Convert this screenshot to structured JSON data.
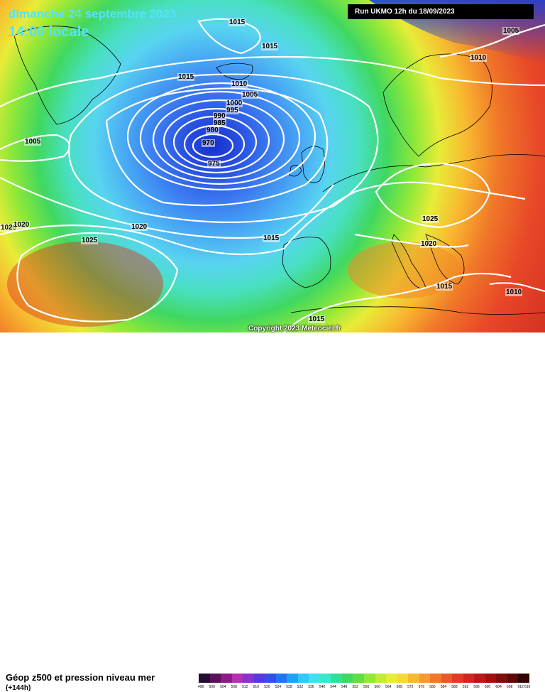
{
  "header": {
    "date": "dimanche 24 septembre 2023",
    "time": "14:00 locale",
    "run": "Run UKMO 12h du 18/09/2023"
  },
  "map": {
    "low_center_value": "970",
    "isobar_labels": [
      "1015",
      "1015",
      "1005",
      "1010",
      "1010",
      "1015",
      "1005",
      "1000",
      "995",
      "990",
      "985",
      "980",
      "970",
      "975",
      "1005",
      "1020",
      "1020",
      "1020",
      "1025",
      "1015",
      "1025",
      "1020",
      "1015",
      "1010",
      "1015"
    ],
    "copyright": "Copyright 2023 Meteociel.fr",
    "colors": {
      "deep_low": "#1a3cd8",
      "low": "#3b7cf0",
      "mid": "#58d8f0",
      "green": "#4cd848",
      "yellow": "#f0e040",
      "orange": "#f0a030",
      "red": "#e84428",
      "dark_red": "#c8201c",
      "isobar": "#ffffff",
      "coast": "#000000"
    }
  },
  "footer": {
    "field": "Géop z500 et pression niveau mer",
    "lead": "(+144h)"
  },
  "legend": {
    "values": [
      "496",
      "500",
      "504",
      "508",
      "512",
      "516",
      "520",
      "524",
      "528",
      "532",
      "536",
      "540",
      "544",
      "548",
      "552",
      "556",
      "560",
      "564",
      "568",
      "572",
      "576",
      "580",
      "584",
      "588",
      "592",
      "596",
      "600",
      "604",
      "608",
      "612",
      "616"
    ],
    "colors": [
      "#240c30",
      "#5a1258",
      "#8e1a8a",
      "#b430b4",
      "#8c30d0",
      "#5a38e0",
      "#3450e8",
      "#2078f0",
      "#20a0f8",
      "#30c8f8",
      "#40e0f0",
      "#38e8c8",
      "#30e098",
      "#40d860",
      "#60e040",
      "#90e838",
      "#c0ec38",
      "#e8ec38",
      "#f8d838",
      "#f8b830",
      "#f89830",
      "#f07828",
      "#e85828",
      "#e03c24",
      "#d02820",
      "#b81818",
      "#a01010",
      "#800c0c",
      "#600808",
      "#300404"
    ]
  }
}
